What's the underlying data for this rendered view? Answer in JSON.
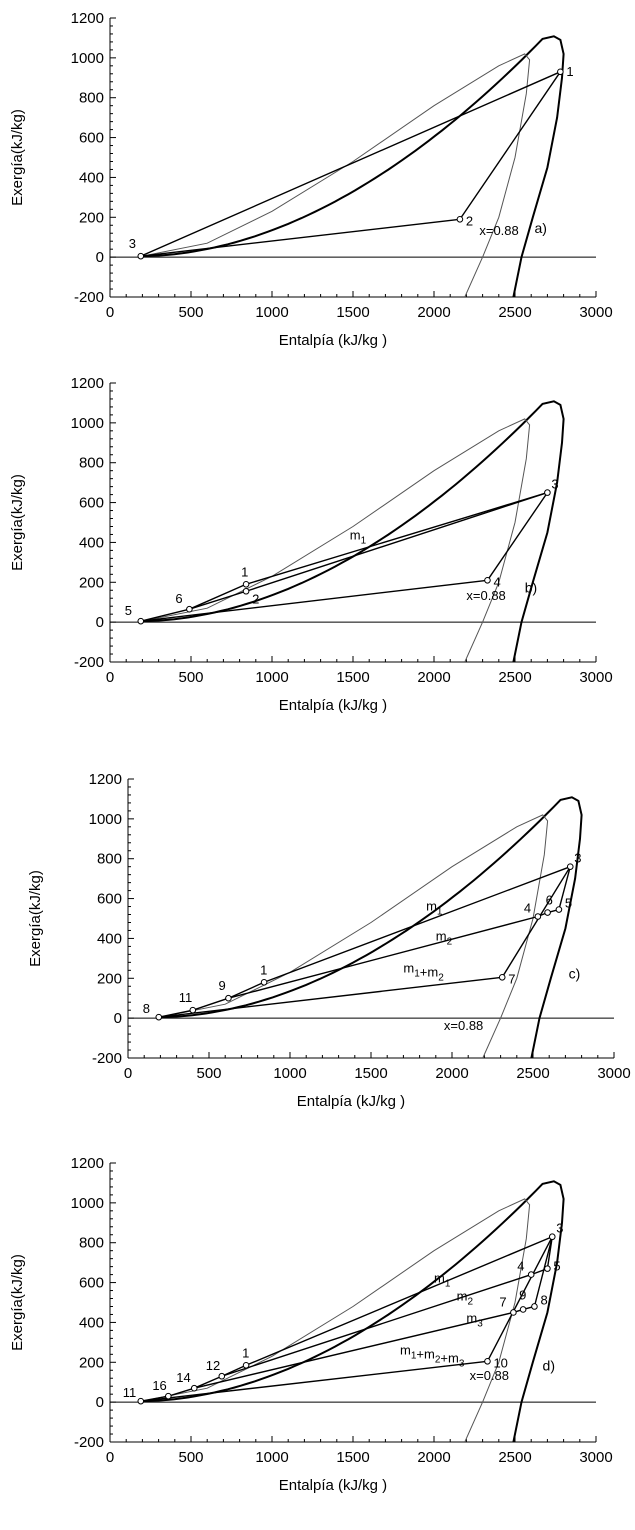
{
  "chart_data": [
    {
      "type": "line",
      "panel_label": "a)",
      "xlabel": "Entalpía (kJ/kg )",
      "ylabel": "Exergía(kJ/kg)",
      "xlim": [
        0,
        3000
      ],
      "ylim": [
        -200,
        1200
      ],
      "x_ticks": [
        "0",
        "500",
        "1000",
        "1500",
        "2000",
        "2500",
        "3000"
      ],
      "y_ticks": [
        "-200",
        "0",
        "200",
        "400",
        "600",
        "800",
        "1000",
        "1200"
      ],
      "quality_label": "x=0.88",
      "quality_label_pos": [
        2280,
        110
      ],
      "points": [
        {
          "label": "1",
          "x": 2780,
          "y": 930
        },
        {
          "label": "2",
          "x": 2160,
          "y": 190
        },
        {
          "label": "3",
          "x": 190,
          "y": 5
        }
      ],
      "segments": [
        [
          "1",
          "2"
        ],
        [
          "2",
          "3"
        ],
        [
          "3",
          "1"
        ]
      ],
      "mass_labels": []
    },
    {
      "type": "line",
      "panel_label": "b)",
      "xlabel": "Entalpía (kJ/kg )",
      "ylabel": "Exergía(kJ/kg)",
      "xlim": [
        0,
        3000
      ],
      "ylim": [
        -200,
        1200
      ],
      "x_ticks": [
        "0",
        "500",
        "1000",
        "1500",
        "2000",
        "2500",
        "3000"
      ],
      "y_ticks": [
        "-200",
        "0",
        "200",
        "400",
        "600",
        "800",
        "1000",
        "1200"
      ],
      "quality_label": "x=0.88",
      "quality_label_pos": [
        2200,
        110
      ],
      "points": [
        {
          "label": "1",
          "x": 840,
          "y": 190
        },
        {
          "label": "2",
          "x": 840,
          "y": 155
        },
        {
          "label": "3",
          "x": 2700,
          "y": 650
        },
        {
          "label": "4",
          "x": 2330,
          "y": 210
        },
        {
          "label": "5",
          "x": 190,
          "y": 5
        },
        {
          "label": "6",
          "x": 490,
          "y": 65
        }
      ],
      "segments": [
        [
          "5",
          "6"
        ],
        [
          "6",
          "1"
        ],
        [
          "1",
          "3"
        ],
        [
          "3",
          "4"
        ],
        [
          "4",
          "5"
        ],
        [
          "6",
          "2"
        ],
        [
          "2",
          "3"
        ]
      ],
      "mass_labels": [
        {
          "base": "m",
          "sub": "1",
          "x": 1480,
          "y": 415
        }
      ]
    },
    {
      "type": "line",
      "panel_label": "c)",
      "xlabel": "Entalpía (kJ/kg )",
      "ylabel": "Exergía(kJ/kg)",
      "xlim": [
        0,
        3000
      ],
      "ylim": [
        -200,
        1200
      ],
      "x_ticks": [
        "0",
        "500",
        "1000",
        "1500",
        "2000",
        "2500",
        "3000"
      ],
      "y_ticks": [
        "-200",
        "0",
        "200",
        "400",
        "600",
        "800",
        "1000",
        "1200"
      ],
      "quality_label": "x=0.88",
      "quality_label_pos": [
        1950,
        -60
      ],
      "points": [
        {
          "label": "1",
          "x": 840,
          "y": 180
        },
        {
          "label": "3",
          "x": 2730,
          "y": 760
        },
        {
          "label": "4",
          "x": 2530,
          "y": 510
        },
        {
          "label": "5",
          "x": 2660,
          "y": 545
        },
        {
          "label": "6",
          "x": 2590,
          "y": 530
        },
        {
          "label": "7",
          "x": 2310,
          "y": 205
        },
        {
          "label": "8",
          "x": 190,
          "y": 5
        },
        {
          "label": "9",
          "x": 620,
          "y": 100
        },
        {
          "label": "11",
          "x": 400,
          "y": 40
        }
      ],
      "segments": [
        [
          "8",
          "11"
        ],
        [
          "11",
          "9"
        ],
        [
          "9",
          "1"
        ],
        [
          "1",
          "3"
        ],
        [
          "3",
          "5"
        ],
        [
          "5",
          "6"
        ],
        [
          "6",
          "4"
        ],
        [
          "4",
          "9"
        ],
        [
          "3",
          "7"
        ],
        [
          "7",
          "8"
        ]
      ],
      "mass_labels": [
        {
          "base": "m",
          "sub": "1",
          "x": 1840,
          "y": 540
        },
        {
          "base": "m",
          "sub": "2",
          "x": 1900,
          "y": 390
        },
        {
          "base": "m",
          "sub": "1",
          "plus": true,
          "base2": "m",
          "sub2": "2",
          "x": 1700,
          "y": 230
        }
      ]
    },
    {
      "type": "line",
      "panel_label": "d)",
      "xlabel": "Entalpía (kJ/kg )",
      "ylabel": "Exergía(kJ/kg)",
      "xlim": [
        0,
        3000
      ],
      "ylim": [
        -200,
        1200
      ],
      "x_ticks": [
        "0",
        "500",
        "1000",
        "1500",
        "2000",
        "2500",
        "3000"
      ],
      "y_ticks": [
        "-200",
        "0",
        "200",
        "400",
        "600",
        "800",
        "1000",
        "1200"
      ],
      "quality_label": "x=0.88",
      "quality_label_pos": [
        2220,
        110
      ],
      "points": [
        {
          "label": "1",
          "x": 840,
          "y": 185
        },
        {
          "label": "3",
          "x": 2730,
          "y": 830
        },
        {
          "label": "4",
          "x": 2600,
          "y": 640
        },
        {
          "label": "5",
          "x": 2700,
          "y": 670
        },
        {
          "label": "7",
          "x": 2490,
          "y": 450
        },
        {
          "label": "8",
          "x": 2620,
          "y": 480
        },
        {
          "label": "9",
          "x": 2550,
          "y": 465
        },
        {
          "label": "10",
          "x": 2330,
          "y": 205
        },
        {
          "label": "11",
          "x": 190,
          "y": 5
        },
        {
          "label": "12",
          "x": 690,
          "y": 130
        },
        {
          "label": "14",
          "x": 520,
          "y": 70
        },
        {
          "label": "16",
          "x": 360,
          "y": 30
        }
      ],
      "segments": [
        [
          "11",
          "16"
        ],
        [
          "16",
          "14"
        ],
        [
          "14",
          "12"
        ],
        [
          "12",
          "1"
        ],
        [
          "1",
          "3"
        ],
        [
          "3",
          "5"
        ],
        [
          "5",
          "4"
        ],
        [
          "4",
          "12"
        ],
        [
          "3",
          "8"
        ],
        [
          "8",
          "9"
        ],
        [
          "9",
          "7"
        ],
        [
          "7",
          "14"
        ],
        [
          "3",
          "10"
        ],
        [
          "10",
          "11"
        ]
      ],
      "mass_labels": [
        {
          "base": "m",
          "sub": "1",
          "x": 2000,
          "y": 600
        },
        {
          "base": "m",
          "sub": "2",
          "x": 2140,
          "y": 510
        },
        {
          "base": "m",
          "sub": "3",
          "x": 2200,
          "y": 400
        },
        {
          "base": "m",
          "sub": "1",
          "plus": true,
          "base2": "m",
          "sub2": "2",
          "plus2": true,
          "base3": "m",
          "sub3": "3",
          "x": 1790,
          "y": 240
        }
      ]
    }
  ]
}
